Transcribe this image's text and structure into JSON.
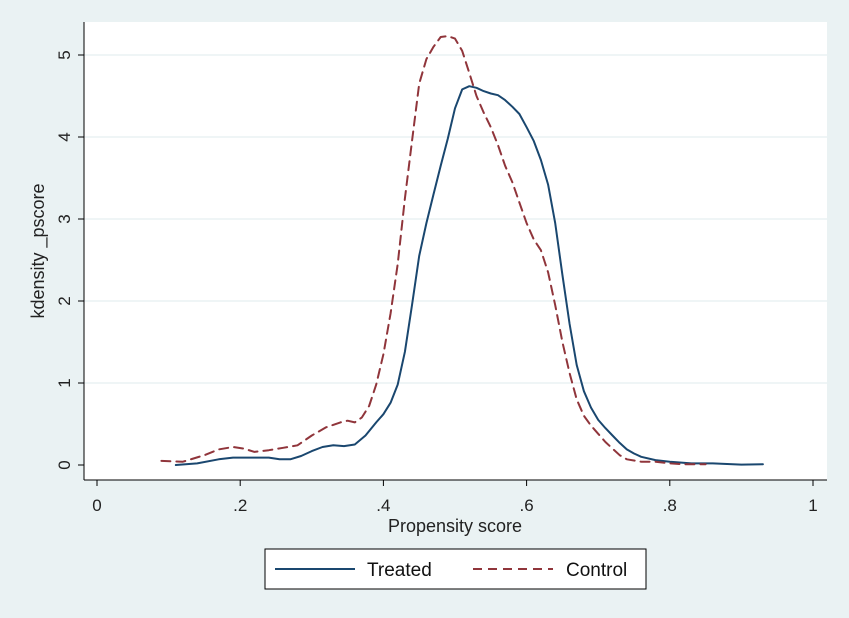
{
  "chart_data": {
    "type": "line",
    "xlabel": "Propensity score",
    "ylabel": "kdensity _pscore",
    "xlim": [
      0,
      1
    ],
    "ylim": [
      0,
      5.3
    ],
    "x_ticks": [
      {
        "value": 0,
        "label": "0"
      },
      {
        "value": 0.2,
        "label": ".2"
      },
      {
        "value": 0.4,
        "label": ".4"
      },
      {
        "value": 0.6,
        "label": ".6"
      },
      {
        "value": 0.8,
        "label": ".8"
      },
      {
        "value": 1,
        "label": "1"
      }
    ],
    "y_ticks": [
      {
        "value": 0,
        "label": "0"
      },
      {
        "value": 1,
        "label": "1"
      },
      {
        "value": 2,
        "label": "2"
      },
      {
        "value": 3,
        "label": "3"
      },
      {
        "value": 4,
        "label": "4"
      },
      {
        "value": 5,
        "label": "5"
      }
    ],
    "grid": "horizontal",
    "legend_position": "bottom",
    "colors": {
      "background": "#eaf2f3",
      "plot_background": "#ffffff",
      "grid": "#eaf2f3",
      "treated": "#1a476f",
      "control": "#90353b"
    },
    "series": [
      {
        "name": "Treated",
        "style": "solid",
        "color": "#1a476f",
        "x": [
          0.11,
          0.14,
          0.17,
          0.19,
          0.22,
          0.24,
          0.255,
          0.27,
          0.285,
          0.3,
          0.315,
          0.33,
          0.345,
          0.36,
          0.375,
          0.39,
          0.4,
          0.41,
          0.42,
          0.43,
          0.44,
          0.45,
          0.46,
          0.47,
          0.48,
          0.49,
          0.5,
          0.51,
          0.52,
          0.53,
          0.54,
          0.55,
          0.56,
          0.57,
          0.58,
          0.59,
          0.6,
          0.61,
          0.62,
          0.63,
          0.64,
          0.65,
          0.66,
          0.67,
          0.68,
          0.69,
          0.7,
          0.71,
          0.72,
          0.73,
          0.74,
          0.75,
          0.76,
          0.78,
          0.8,
          0.83,
          0.86,
          0.9,
          0.93
        ],
        "y": [
          0,
          0.02,
          0.07,
          0.09,
          0.09,
          0.09,
          0.07,
          0.07,
          0.11,
          0.17,
          0.22,
          0.24,
          0.23,
          0.25,
          0.36,
          0.52,
          0.62,
          0.76,
          0.98,
          1.38,
          1.95,
          2.55,
          2.95,
          3.3,
          3.65,
          3.98,
          4.35,
          4.58,
          4.62,
          4.6,
          4.56,
          4.53,
          4.51,
          4.45,
          4.37,
          4.28,
          4.12,
          3.95,
          3.72,
          3.42,
          2.95,
          2.32,
          1.72,
          1.22,
          0.9,
          0.7,
          0.55,
          0.45,
          0.36,
          0.27,
          0.19,
          0.14,
          0.1,
          0.06,
          0.04,
          0.02,
          0.02,
          0.005,
          0.01
        ]
      },
      {
        "name": "Control",
        "style": "dashed",
        "color": "#90353b",
        "x": [
          0.09,
          0.12,
          0.15,
          0.17,
          0.19,
          0.205,
          0.22,
          0.24,
          0.26,
          0.28,
          0.3,
          0.32,
          0.34,
          0.35,
          0.36,
          0.37,
          0.38,
          0.39,
          0.4,
          0.41,
          0.42,
          0.43,
          0.44,
          0.45,
          0.46,
          0.47,
          0.48,
          0.49,
          0.5,
          0.51,
          0.52,
          0.53,
          0.54,
          0.55,
          0.56,
          0.57,
          0.58,
          0.59,
          0.6,
          0.61,
          0.62,
          0.63,
          0.64,
          0.65,
          0.66,
          0.67,
          0.68,
          0.69,
          0.7,
          0.71,
          0.72,
          0.73,
          0.74,
          0.76,
          0.78,
          0.8,
          0.82,
          0.85
        ],
        "y": [
          0.05,
          0.04,
          0.12,
          0.19,
          0.22,
          0.2,
          0.16,
          0.18,
          0.21,
          0.24,
          0.36,
          0.46,
          0.52,
          0.54,
          0.52,
          0.58,
          0.72,
          0.98,
          1.35,
          1.85,
          2.45,
          3.25,
          3.95,
          4.65,
          4.95,
          5.1,
          5.22,
          5.23,
          5.2,
          5.05,
          4.78,
          4.5,
          4.3,
          4.12,
          3.9,
          3.65,
          3.45,
          3.2,
          2.95,
          2.75,
          2.62,
          2.35,
          1.95,
          1.5,
          1.12,
          0.8,
          0.6,
          0.48,
          0.38,
          0.28,
          0.2,
          0.12,
          0.07,
          0.04,
          0.04,
          0.02,
          0.01,
          0.01
        ]
      }
    ]
  }
}
